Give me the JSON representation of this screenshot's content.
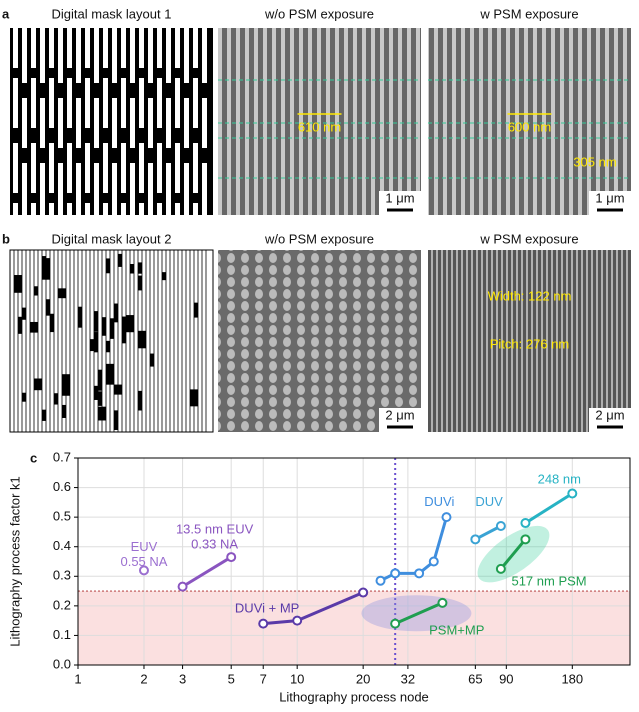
{
  "panels": [
    {
      "label": "a",
      "images": [
        {
          "title": "Digital mask layout 1"
        },
        {
          "title": "w/o PSM exposure",
          "annotations": [
            "610 nm"
          ],
          "scale_bar": "1 μm"
        },
        {
          "title": "w PSM exposure",
          "annotations": [
            "600 nm",
            "305 nm"
          ],
          "scale_bar": "1 μm"
        }
      ]
    },
    {
      "label": "b",
      "images": [
        {
          "title": "Digital mask layout 2"
        },
        {
          "title": "w/o PSM exposure",
          "scale_bar": "2 μm"
        },
        {
          "title": "w PSM exposure",
          "annotations": [
            "Width: 122 nm",
            "Pitch: 276 nm"
          ],
          "scale_bar": "2 μm"
        }
      ]
    }
  ],
  "chart_data": {
    "type": "scatter",
    "label": "c",
    "x_label": "Lithography process node",
    "y_label": "Lithography process factor k1",
    "log_x": true,
    "grid": true,
    "xlim": [
      1,
      330
    ],
    "xticks": [
      1,
      2,
      3,
      5,
      7,
      10,
      20,
      32,
      65,
      90,
      180
    ],
    "ylim": [
      0,
      0.7
    ],
    "yticks": [
      {
        "value": 0,
        "label": "0.0"
      },
      0.1,
      0.2,
      0.3,
      0.4,
      0.5,
      0.6,
      0.7
    ],
    "threshold_k1": 0.25,
    "reference_node": 28,
    "series": [
      {
        "name": "EUV\n0.55 NA",
        "color": "#9b6fd0",
        "x": [
          2
        ],
        "values": [
          0.32
        ]
      },
      {
        "name": "13.5 nm EUV\n0.33 NA",
        "color": "#8a55c0",
        "x": [
          3,
          5
        ],
        "values": [
          0.265,
          0.365
        ]
      },
      {
        "name": "DUVi + MP",
        "color": "#5a3aa8",
        "x": [
          7,
          10,
          20
        ],
        "values": [
          0.14,
          0.15,
          0.245
        ]
      },
      {
        "name": "DUVi",
        "color": "#3f8ede",
        "x": [
          24,
          28,
          36,
          42,
          48
        ],
        "values": [
          0.285,
          0.31,
          0.31,
          0.35,
          0.5
        ]
      },
      {
        "name": "DUV",
        "color": "#3aa3d4",
        "x": [
          65,
          85
        ],
        "values": [
          0.425,
          0.47
        ]
      },
      {
        "name": "248 nm",
        "color": "#27b3c4",
        "x": [
          110,
          180
        ],
        "values": [
          0.48,
          0.58
        ]
      },
      {
        "name": "517 nm PSM",
        "color": "#1f9e50",
        "x": [
          85,
          110
        ],
        "values": [
          0.325,
          0.425
        ]
      },
      {
        "name": "PSM+MP",
        "color": "#1f9e50",
        "x": [
          28,
          46
        ],
        "values": [
          0.14,
          0.21
        ]
      }
    ]
  }
}
